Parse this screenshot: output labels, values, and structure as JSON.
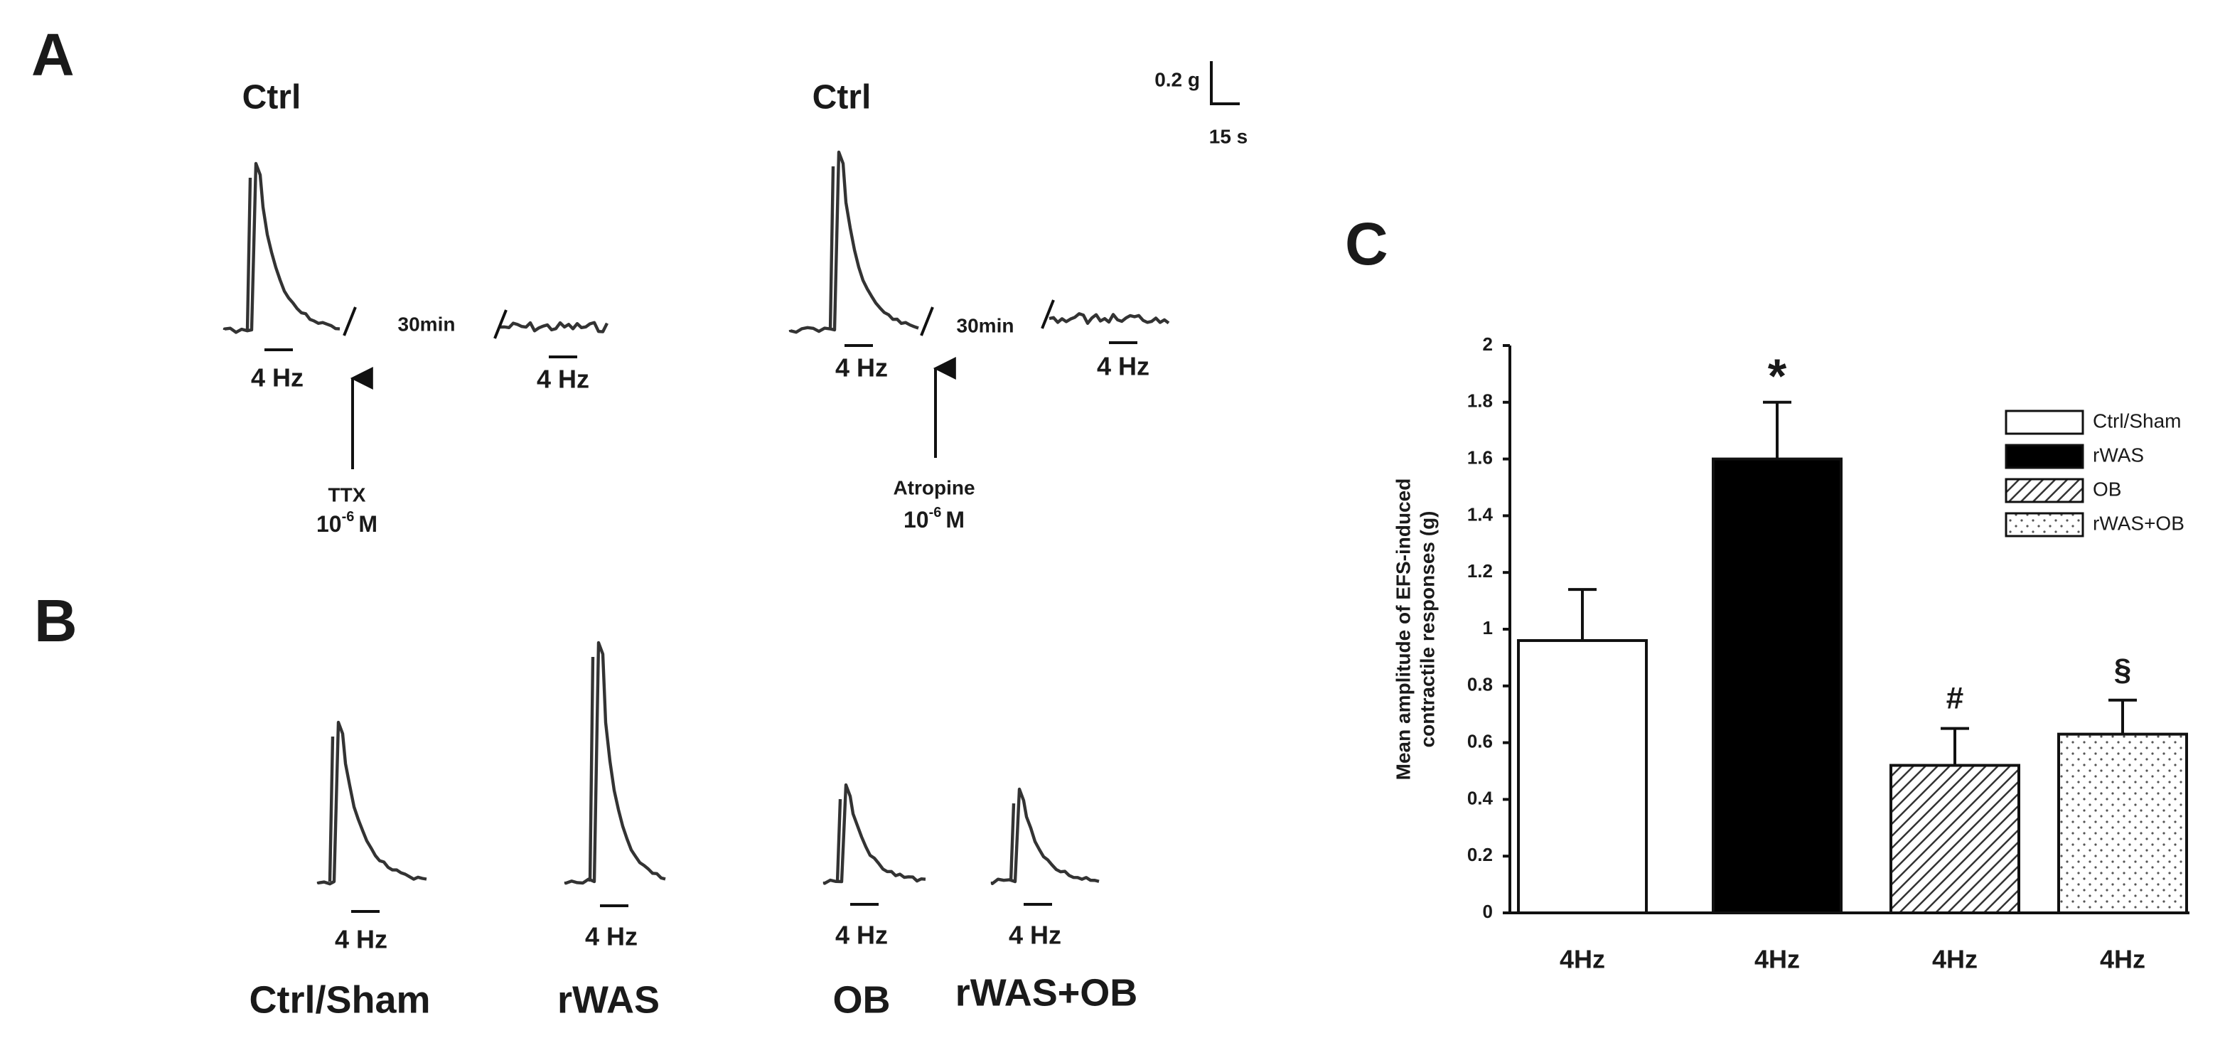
{
  "panel_a": {
    "label": "A",
    "left": {
      "title": "Ctrl",
      "stim_before": "4 Hz",
      "gap": "30min",
      "stim_after": "4 Hz",
      "drug": "TTX",
      "conc": {
        "base": "10",
        "exp": "-6",
        "unit": "M"
      }
    },
    "right": {
      "title": "Ctrl",
      "stim_before": "4 Hz",
      "gap": "30min",
      "stim_after": "4 Hz",
      "drug": "Atropine",
      "conc": {
        "base": "10",
        "exp": "-6",
        "unit": "M"
      }
    },
    "scale_bar": {
      "force": "0.2 g",
      "time": "15 s"
    }
  },
  "panel_b": {
    "label": "B",
    "traces": [
      {
        "name": "Ctrl/Sham",
        "stim": "4 Hz"
      },
      {
        "name": "rWAS",
        "stim": "4 Hz"
      },
      {
        "name": "OB",
        "stim": "4 Hz"
      },
      {
        "name": "rWAS+OB",
        "stim": "4 Hz"
      }
    ]
  },
  "panel_c": {
    "label": "C"
  },
  "chart_data": {
    "type": "bar",
    "y_label": [
      "Mean amplitude of EFS-induced",
      "contractile responses (g)"
    ],
    "categories": [
      "4Hz",
      "4Hz",
      "4Hz",
      "4Hz"
    ],
    "values": [
      0.96,
      1.6,
      0.52,
      0.63
    ],
    "errors": [
      0.18,
      0.2,
      0.13,
      0.12
    ],
    "annotations": [
      null,
      "*",
      "#",
      "§"
    ],
    "legend": [
      "Ctrl/Sham",
      "rWAS",
      "OB",
      "rWAS+OB"
    ],
    "fills": [
      "white",
      "black",
      "hatch",
      "dots"
    ],
    "ylim": [
      0,
      2
    ],
    "yticks": [
      0,
      0.2,
      0.4,
      0.6,
      0.8,
      1,
      1.2,
      1.4,
      1.6,
      1.8,
      2
    ]
  }
}
